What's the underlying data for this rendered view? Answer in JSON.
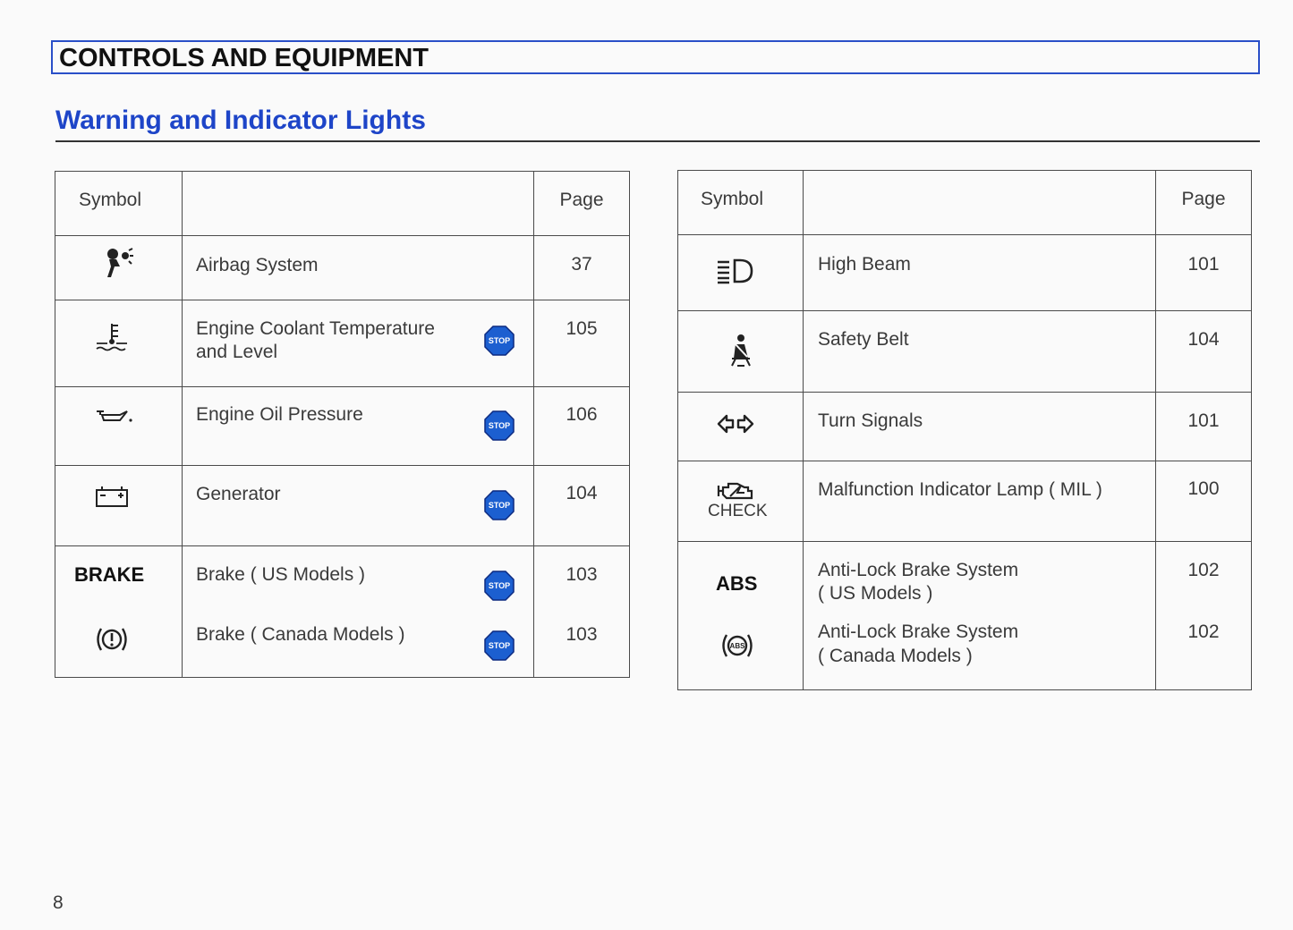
{
  "header": {
    "section": "CONTROLS AND EQUIPMENT",
    "title": "Warning and Indicator Lights"
  },
  "tables": [
    {
      "columns": {
        "symbol": "Symbol",
        "page": "Page"
      },
      "rows": [
        {
          "description": "Airbag System",
          "page": 37
        },
        {
          "description": [
            "Engine Coolant Temperature",
            "and Level"
          ],
          "page": 105,
          "stop": "STOP"
        },
        {
          "description": "Engine Oil Pressure",
          "page": 106,
          "stop": "STOP"
        },
        {
          "description": "Generator",
          "page": 104,
          "stop": "STOP"
        },
        {
          "entries": [
            {
              "symbol": "BRAKE",
              "description": "Brake ( US Models )",
              "page": 103,
              "stop": "STOP"
            },
            {
              "description": "Brake ( Canada Models )",
              "page": 103,
              "stop": "STOP"
            }
          ]
        }
      ]
    },
    {
      "columns": {
        "symbol": "Symbol",
        "page": "Page"
      },
      "rows": [
        {
          "description": "High Beam",
          "page": 101
        },
        {
          "description": "Safety Belt",
          "page": 104
        },
        {
          "description": "Turn Signals",
          "page": 101
        },
        {
          "symbol": "CHECK",
          "description": "Malfunction Indicator Lamp ( MIL )",
          "page": 100
        },
        {
          "entries": [
            {
              "symbol": "ABS",
              "description": [
                "Anti-Lock Brake System",
                "( US Models )"
              ],
              "page": 102
            },
            {
              "symbol_badge": "ABS",
              "description": [
                "Anti-Lock Brake System",
                "( Canada Models )"
              ],
              "page": 102
            }
          ]
        }
      ]
    }
  ],
  "page_number": 8
}
